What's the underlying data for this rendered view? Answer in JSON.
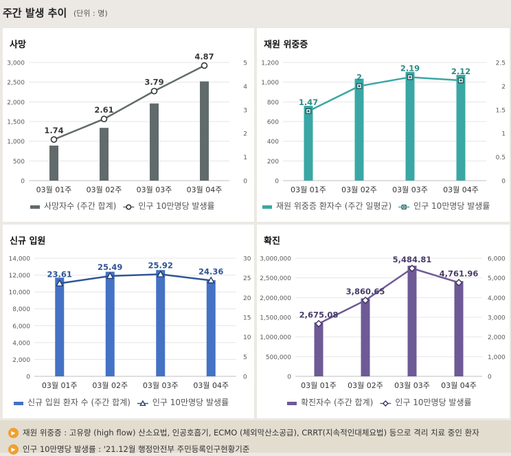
{
  "header": {
    "title": "주간 발생 추이",
    "unit": "(단위 : 명)"
  },
  "chart_data": [
    {
      "type": "bar",
      "title": "사망",
      "categories": [
        "03월 01주",
        "03월 02주",
        "03월 03주",
        "03월 04주"
      ],
      "color_bar": "#616b6b",
      "color_line": "#616b6b",
      "marker": "circle",
      "left_axis": {
        "min": 0,
        "max": 3000,
        "step": 500,
        "ticks": [
          "0",
          "500",
          "1,000",
          "1,500",
          "2,000",
          "2,500",
          "3,000"
        ]
      },
      "right_axis": {
        "min": 0,
        "max": 5,
        "step": 1,
        "ticks": [
          "0",
          "1",
          "2",
          "3",
          "4",
          "5"
        ]
      },
      "series": [
        {
          "name": "사망자수 (주간 합계)",
          "type": "bar",
          "axis": "left",
          "values": [
            890,
            1340,
            1960,
            2520
          ]
        },
        {
          "name": "인구 10만명당 발생률",
          "type": "line",
          "axis": "right",
          "values": [
            1.74,
            2.61,
            3.79,
            4.87
          ],
          "labels": [
            "1.74",
            "2.61",
            "3.79",
            "4.87"
          ]
        }
      ]
    },
    {
      "type": "bar",
      "title": "재원 위중증",
      "categories": [
        "03월 01주",
        "03월 02주",
        "03월 03주",
        "03월 04주"
      ],
      "color_bar": "#3aa7a4",
      "color_line": "#3aa7a4",
      "marker": "square",
      "left_axis": {
        "min": 0,
        "max": 1200,
        "step": 200,
        "ticks": [
          "0",
          "200",
          "400",
          "600",
          "800",
          "1,000",
          "1,200"
        ]
      },
      "right_axis": {
        "min": 0,
        "max": 2.5,
        "step": 0.5,
        "ticks": [
          "0",
          "0.5",
          "1",
          "1.5",
          "2",
          "2.5"
        ]
      },
      "series": [
        {
          "name": "재원 위중증 환자수 (주간 일평균)",
          "type": "bar",
          "axis": "left",
          "values": [
            760,
            1035,
            1105,
            1075
          ]
        },
        {
          "name": "인구 10만명당 발생률",
          "type": "line",
          "axis": "right",
          "values": [
            1.47,
            2.0,
            2.19,
            2.12
          ],
          "labels": [
            "1.47",
            "2",
            "2.19",
            "2.12"
          ]
        }
      ]
    },
    {
      "type": "bar",
      "title": "신규 입원",
      "categories": [
        "03월 01주",
        "03월 02주",
        "03월 03주",
        "03월 04주"
      ],
      "color_bar": "#4472c4",
      "color_line": "#2f5597",
      "marker": "triangle",
      "left_axis": {
        "min": 0,
        "max": 14000,
        "step": 2000,
        "ticks": [
          "0",
          "2,000",
          "4,000",
          "6,000",
          "8,000",
          "10,000",
          "12,000",
          "14,000"
        ]
      },
      "right_axis": {
        "min": 0,
        "max": 30,
        "step": 5,
        "ticks": [
          "0",
          "5",
          "10",
          "15",
          "20",
          "25",
          "30"
        ]
      },
      "series": [
        {
          "name": "신규 입원 환자 수 (주간 합계)",
          "type": "bar",
          "axis": "left",
          "values": [
            11700,
            12400,
            12600,
            11400
          ]
        },
        {
          "name": "인구 10만명당 발생률",
          "type": "line",
          "axis": "right",
          "values": [
            23.61,
            25.49,
            25.92,
            24.36
          ],
          "labels": [
            "23.61",
            "25.49",
            "25.92",
            "24.36"
          ]
        }
      ]
    },
    {
      "type": "bar",
      "title": "확진",
      "categories": [
        "03월 01주",
        "03월 02주",
        "03월 03주",
        "03월 04주"
      ],
      "color_bar": "#6e5a96",
      "color_line": "#6e5a96",
      "marker": "diamond",
      "left_axis": {
        "min": 0,
        "max": 3000000,
        "step": 500000,
        "ticks": [
          "0",
          "500,000",
          "1,000,000",
          "1,500,000",
          "2,000,000",
          "2,500,000",
          "3,000,000"
        ]
      },
      "right_axis": {
        "min": 0,
        "max": 6000,
        "step": 1000,
        "ticks": [
          "0",
          "1,000",
          "2,000",
          "3,000",
          "4,000",
          "5,000",
          "6,000"
        ]
      },
      "series": [
        {
          "name": "확진자수 (주간 합계)",
          "type": "bar",
          "axis": "left",
          "values": [
            1370000,
            1980000,
            2810000,
            2420000
          ]
        },
        {
          "name": "인구 10만명당 발생률",
          "type": "line",
          "axis": "right",
          "values": [
            2675.08,
            3860.65,
            5484.81,
            4761.96
          ],
          "labels": [
            "2,675.08",
            "3,860.65",
            "5,484.81",
            "4,761.96"
          ]
        }
      ]
    }
  ],
  "notes": [
    "재원 위중증 : 고유량 (high flow) 산소요법, 인공호흡기, ECMO (체외막산소공급), CRRT(지속적인대체요법) 등으로 격리 치료 중인 환자",
    "인구 10만명당 발생률 : '21.12월 행정안전부 주민등록인구현황기준"
  ]
}
